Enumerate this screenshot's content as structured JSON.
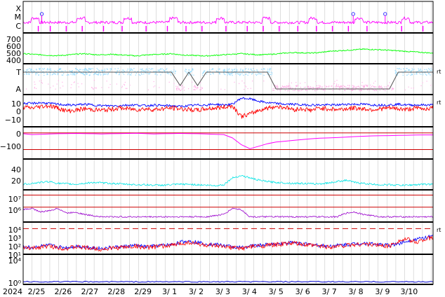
{
  "chart_data": {
    "type": "line",
    "layout": "stacked-time-series",
    "grid": true,
    "year_label": "2024",
    "x_ticks": [
      "2/25",
      "2/26",
      "2/27",
      "2/28",
      "2/29",
      "3/ 1",
      "3/ 2",
      "3/ 3",
      "3/ 4",
      "3/ 5",
      "3/ 6",
      "3/ 7",
      "3/ 8",
      "3/ 9",
      "3/10"
    ],
    "x_range_days": [
      0,
      15.4
    ],
    "colors": {
      "magenta": "#ff00ff",
      "green": "#00ff00",
      "lightblue": "#99ddff",
      "pink": "#ffb0e6",
      "gray": "#555555",
      "blue": "#0000ff",
      "red": "#ff0000",
      "purple": "#9900cc",
      "cyan": "#00e5e5",
      "navy": "#0000cc"
    },
    "panels": [
      {
        "id": "flare",
        "tick_labels": [
          "X",
          "M",
          "C"
        ],
        "right_mark": "",
        "events": [
          {
            "day": 0.7,
            "level": "X",
            "symbol": "circle"
          },
          {
            "day": 12.4,
            "level": "X",
            "symbol": "circle"
          },
          {
            "day": 13.6,
            "level": "X",
            "symbol": "circle"
          }
        ],
        "markers_days": [
          0.55,
          1.0,
          1.6,
          2.2,
          3.0,
          3.7,
          4.6,
          5.4,
          6.1,
          6.7,
          7.6,
          8.4,
          9.0,
          9.6,
          10.3,
          11.0,
          11.6,
          12.2,
          12.9,
          14.2,
          15.0
        ]
      },
      {
        "id": "speed",
        "tick_labels": [
          "700",
          "600",
          "500",
          "400"
        ],
        "ylim": [
          300,
          750
        ],
        "right_mark": "",
        "series": [
          {
            "color": "green",
            "values": [
              430,
              420,
              410,
              400,
              395,
              405,
              420,
              430,
              415,
              410,
              420,
              410,
              400,
              390,
              405,
              415,
              420,
              430,
              410,
              400,
              395,
              390,
              400,
              410,
              420,
              430,
              420,
              410,
              415,
              425,
              440,
              450,
              445,
              440,
              450,
              470,
              480,
              490,
              500,
              510,
              505,
              500,
              490,
              480,
              470,
              460,
              450,
              440
            ]
          }
        ]
      },
      {
        "id": "orientation",
        "tick_labels": [
          "T",
          "A"
        ],
        "right_mark": "rt",
        "series": [
          {
            "color": "gray",
            "values": [
              1,
              1,
              1,
              1,
              1,
              1,
              1,
              1,
              1,
              1,
              1,
              1,
              1,
              1,
              1,
              1,
              1,
              1,
              0.2,
              1,
              0.2,
              1,
              1,
              1,
              1,
              1,
              1,
              1,
              1,
              0,
              0,
              0,
              0,
              0,
              0,
              0,
              0,
              0,
              0,
              0,
              0,
              0,
              0,
              1,
              1,
              1,
              1,
              1
            ]
          }
        ]
      },
      {
        "id": "bfield",
        "tick_labels": [
          "10",
          "0",
          "−10"
        ],
        "ylim": [
          -20,
          15
        ],
        "right_mark": "rt",
        "series": [
          {
            "color": "blue",
            "values": [
              7,
              7,
              8,
              7,
              6,
              5,
              5,
              6,
              5,
              4,
              4,
              4,
              5,
              5,
              4,
              5,
              4,
              4,
              3,
              4,
              5,
              5,
              6,
              5,
              6,
              14,
              13,
              10,
              8,
              7,
              6,
              6,
              5,
              5,
              5,
              5,
              5,
              6,
              6,
              6,
              5,
              5,
              5,
              6,
              5,
              5,
              5,
              5
            ]
          },
          {
            "color": "red",
            "values": [
              2,
              1,
              3,
              4,
              1,
              -3,
              -2,
              0,
              -1,
              -2,
              -1,
              1,
              0,
              -1,
              0,
              -1,
              0,
              1,
              0,
              -1,
              -2,
              0,
              1,
              2,
              4,
              -10,
              -7,
              -2,
              1,
              3,
              2,
              -1,
              0,
              -2,
              1,
              0,
              -1,
              0,
              1,
              0,
              -1,
              0,
              1,
              0,
              -1,
              1,
              0,
              1
            ]
          }
        ]
      },
      {
        "id": "dst",
        "tick_labels": [
          "0",
          "−100"
        ],
        "ylim": [
          -140,
          20
        ],
        "right_mark": "",
        "ref_lines": [
          0,
          -100
        ],
        "series": [
          {
            "color": "magenta",
            "values": [
              -5,
              -10,
              -8,
              -6,
              -5,
              -4,
              -3,
              -4,
              -5,
              -6,
              -5,
              -4,
              -3,
              -2,
              -4,
              -6,
              -5,
              -4,
              -3,
              -4,
              -5,
              -6,
              -8,
              -10,
              -30,
              -70,
              -95,
              -80,
              -65,
              -55,
              -50,
              -45,
              -40,
              -35,
              -32,
              -30,
              -28,
              -25,
              -22,
              -20,
              -18,
              -17,
              -16,
              -15,
              -14,
              -13,
              -12,
              -12
            ]
          }
        ]
      },
      {
        "id": "kp",
        "tick_labels": [
          "40",
          "20"
        ],
        "ylim": [
          0,
          55
        ],
        "right_mark": "",
        "series": [
          {
            "color": "cyan",
            "values": [
              6,
              8,
              10,
              12,
              8,
              7,
              6,
              8,
              10,
              9,
              8,
              7,
              6,
              5,
              5,
              4,
              4,
              5,
              6,
              6,
              5,
              4,
              3,
              5,
              20,
              25,
              20,
              15,
              12,
              10,
              9,
              8,
              8,
              7,
              7,
              9,
              12,
              15,
              10,
              8,
              6,
              5,
              5,
              4,
              4,
              5,
              6,
              6
            ]
          }
        ]
      },
      {
        "id": "protons",
        "tick_labels": [
          "10⁷",
          "10⁶"
        ],
        "ylim": [
          5,
          7.2
        ],
        "right_mark": "",
        "ref_lines": [
          7.0,
          6.0
        ],
        "series": [
          {
            "color": "purple",
            "values": [
              5.8,
              5.9,
              5.6,
              5.7,
              5.9,
              5.5,
              5.6,
              5.4,
              5.3,
              5.2,
              5.2,
              5.2,
              5.2,
              5.2,
              5.2,
              5.2,
              5.2,
              5.2,
              5.2,
              5.2,
              5.2,
              5.2,
              5.3,
              5.4,
              5.9,
              5.8,
              5.2,
              5.2,
              5.2,
              5.2,
              5.2,
              5.2,
              5.2,
              5.2,
              5.2,
              5.2,
              5.2,
              5.5,
              5.6,
              5.4,
              5.3,
              5.2,
              5.2,
              5.2,
              5.2,
              5.2,
              5.2,
              5.2
            ]
          }
        ]
      },
      {
        "id": "electrons",
        "tick_labels": [
          "10⁴",
          "10³",
          "10²",
          "10¹"
        ],
        "ylim": [
          1,
          4.5
        ],
        "right_mark": "rt",
        "ref_lines": [
          4
        ],
        "series": [
          {
            "color": "blue",
            "values": [
              1.6,
              1.5,
              1.7,
              1.8,
              1.6,
              1.5,
              1.7,
              1.6,
              1.5,
              1.4,
              1.5,
              1.6,
              1.7,
              1.8,
              1.6,
              1.7,
              1.8,
              1.9,
              2.2,
              2.4,
              2.2,
              2.0,
              1.9,
              1.8,
              1.6,
              1.5,
              1.7,
              1.8,
              1.9,
              2.0,
              2.1,
              2.2,
              2.0,
              1.9,
              1.8,
              1.7,
              1.8,
              1.9,
              2.0,
              2.1,
              2.0,
              1.9,
              1.8,
              2.0,
              2.4,
              2.6,
              2.8,
              3.0
            ]
          },
          {
            "color": "red",
            "values": [
              1.5,
              1.4,
              1.6,
              1.7,
              1.5,
              1.4,
              1.6,
              1.5,
              1.4,
              1.3,
              1.4,
              1.5,
              1.6,
              1.7,
              1.5,
              1.6,
              1.7,
              1.8,
              2.0,
              2.2,
              2.0,
              1.8,
              1.7,
              1.6,
              1.5,
              1.4,
              1.6,
              1.7,
              1.8,
              1.9,
              2.0,
              2.1,
              1.9,
              1.8,
              1.7,
              1.6,
              1.7,
              1.8,
              1.9,
              2.0,
              1.9,
              1.8,
              1.7,
              2.4,
              2.6,
              2.2,
              2.6,
              2.8
            ]
          }
        ]
      },
      {
        "id": "xray",
        "tick_labels": [
          "10⁴",
          "10⁰"
        ],
        "ylim": [
          -1,
          5
        ],
        "right_mark": "",
        "series": [
          {
            "color": "navy",
            "values": [
              0,
              0,
              0,
              0,
              0,
              0,
              0,
              0,
              0,
              0,
              0,
              0,
              0,
              0,
              0,
              0,
              0,
              0,
              0,
              0,
              0,
              0,
              0,
              0,
              0,
              0,
              0,
              0,
              0,
              0,
              0,
              0,
              0,
              0,
              0,
              0,
              0,
              0,
              0,
              0,
              0,
              0,
              0,
              0,
              0,
              0,
              0,
              0
            ]
          }
        ]
      }
    ]
  }
}
